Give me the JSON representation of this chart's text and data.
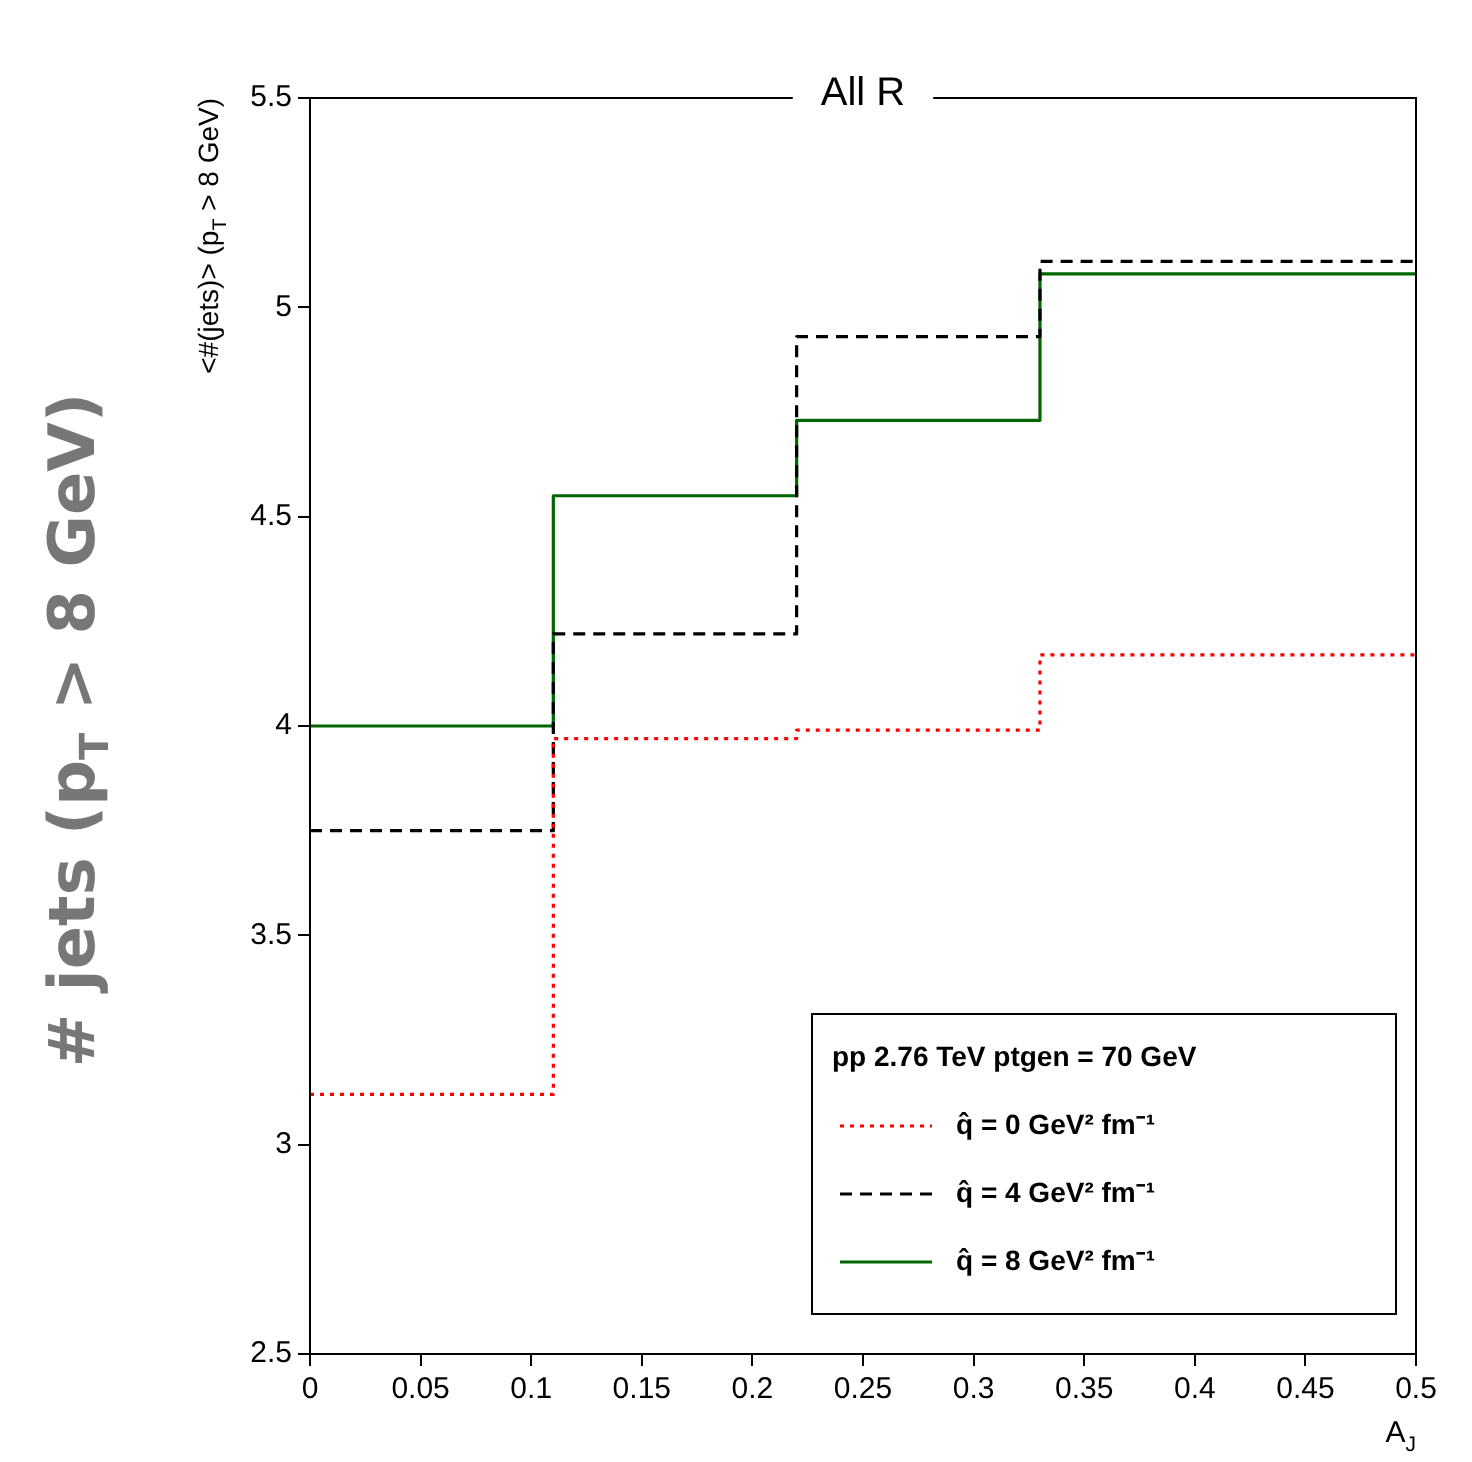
{
  "chart_data": {
    "type": "step",
    "title": "All R",
    "xlabel": "A$_{J}$",
    "ylabel": "<#(jets)> (p$_{T}$ > 8 GeV)",
    "legend_title": "pp 2.76 TeV ptgen = 70 GeV",
    "annotations": [
      "# jets (p$_{T}$ > 8 GeV)"
    ],
    "x": [
      0,
      0.11,
      0.22,
      0.33,
      0.5
    ],
    "series": [
      {
        "name": "q̂ = 0 GeV² fm⁻¹",
        "color": "#ff0000",
        "line_style": "dotted",
        "values": [
          3.12,
          3.97,
          3.99,
          4.17,
          4.17
        ]
      },
      {
        "name": "q̂ = 4 GeV² fm⁻¹",
        "color": "#000000",
        "line_style": "dashed",
        "values": [
          3.75,
          4.22,
          4.93,
          5.11,
          5.11
        ]
      },
      {
        "name": "q̂ = 8 GeV² fm⁻¹",
        "color": "#006600",
        "line_style": "solid",
        "values": [
          4.0,
          4.55,
          4.73,
          5.08,
          5.08
        ]
      }
    ],
    "xlim": [
      0,
      0.5
    ],
    "xticks": [
      0,
      0.05,
      0.1,
      0.15,
      0.2,
      0.25,
      0.3,
      0.35,
      0.4,
      0.45,
      0.5
    ],
    "ylim": [
      2.5,
      5.5
    ],
    "yticks": [
      2.5,
      3,
      3.5,
      4,
      4.5,
      5,
      5.5
    ],
    "grid": false,
    "legend": "bottom right"
  }
}
